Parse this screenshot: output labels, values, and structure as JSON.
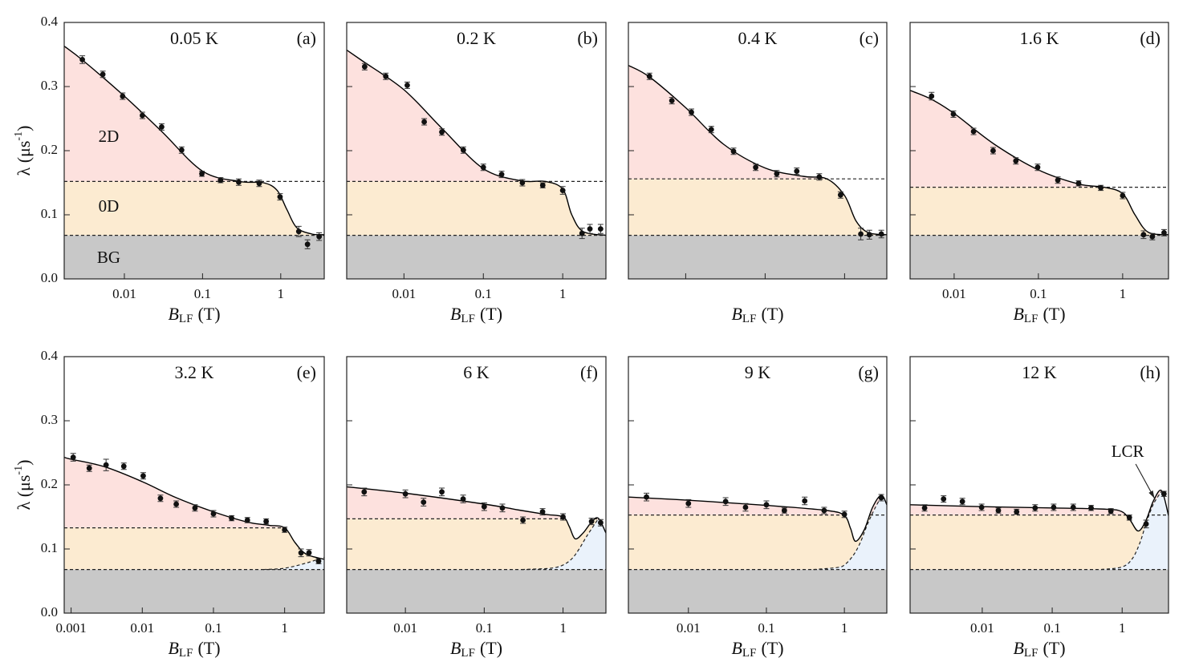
{
  "region_colors": {
    "2D": "#fde1de",
    "0D": "#fcebd1",
    "BG": "#c8c8c8",
    "LCR": "#eaf2fb"
  },
  "chart_data": [
    {
      "type": "scatter",
      "title": "0.05 K",
      "label": "(a)",
      "xlabel": "B",
      "xlabel_sub": "LF",
      "xlabel_unit": "(T)",
      "ylabel": "λ (μs",
      "ylabel_sup": "-1",
      "ylabel_end": ")",
      "log_x": true,
      "xlim": [
        0.0017,
        3.6
      ],
      "ylim": [
        0,
        0.4
      ],
      "xticks": [
        0.01,
        0.1,
        1
      ],
      "xtick_labels": true,
      "yticks": [
        {
          "value": 0,
          "label": "0.0"
        },
        0.1,
        0.2,
        0.3,
        0.4
      ],
      "ytick_labels": true,
      "color": "#111",
      "x": [
        0.0029,
        0.0053,
        0.0095,
        0.017,
        0.03,
        0.054,
        0.098,
        0.17,
        0.29,
        0.53,
        0.98,
        1.7,
        2.2,
        3.1
      ],
      "values": [
        0.342,
        0.319,
        0.285,
        0.255,
        0.237,
        0.201,
        0.164,
        0.154,
        0.151,
        0.149,
        0.128,
        0.074,
        0.054,
        0.066
      ],
      "errors": [
        0.006,
        0.005,
        0.005,
        0.005,
        0.005,
        0.005,
        0.004,
        0.004,
        0.005,
        0.005,
        0.005,
        0.008,
        0.007,
        0.006
      ],
      "fit": {
        "x": [
          0.0017,
          0.003,
          0.01,
          0.03,
          0.1,
          0.3,
          0.6,
          0.9,
          1.2,
          1.6,
          2.5,
          3.6
        ],
        "values": [
          0.363,
          0.34,
          0.285,
          0.23,
          0.168,
          0.152,
          0.15,
          0.138,
          0.108,
          0.08,
          0.07,
          0.069
        ]
      },
      "zero_d": 0.152,
      "bg": 0.068,
      "annotations": [
        {
          "text": "2D",
          "x": 0.0063,
          "y": 0.22
        },
        {
          "text": "0D",
          "x": 0.0063,
          "y": 0.111
        },
        {
          "text": "BG",
          "x": 0.0063,
          "y": 0.031
        }
      ]
    },
    {
      "type": "scatter",
      "title": "0.2 K",
      "label": "(b)",
      "xlabel": "B",
      "xlabel_sub": "LF",
      "xlabel_unit": "(T)",
      "log_x": true,
      "xlim": [
        0.0019,
        3.5
      ],
      "ylim": [
        0,
        0.4
      ],
      "xticks": [
        0.01,
        0.1,
        1
      ],
      "xtick_labels": true,
      "yticks": [
        0,
        0.1,
        0.2,
        0.3,
        0.4
      ],
      "ytick_labels": false,
      "color": "#111",
      "x": [
        0.0032,
        0.0059,
        0.011,
        0.018,
        0.03,
        0.056,
        0.1,
        0.17,
        0.31,
        0.56,
        1.0,
        1.75,
        2.2,
        3.0
      ],
      "values": [
        0.331,
        0.316,
        0.302,
        0.245,
        0.229,
        0.201,
        0.174,
        0.163,
        0.15,
        0.146,
        0.138,
        0.071,
        0.078,
        0.078
      ],
      "errors": [
        0.005,
        0.005,
        0.005,
        0.005,
        0.005,
        0.005,
        0.005,
        0.005,
        0.005,
        0.004,
        0.006,
        0.008,
        0.007,
        0.007
      ],
      "fit": {
        "x": [
          0.0019,
          0.003,
          0.01,
          0.03,
          0.1,
          0.3,
          0.6,
          1,
          1.3,
          1.8,
          3.5
        ],
        "values": [
          0.357,
          0.34,
          0.295,
          0.235,
          0.172,
          0.153,
          0.152,
          0.14,
          0.1,
          0.074,
          0.068
        ]
      },
      "zero_d": 0.152,
      "bg": 0.068
    },
    {
      "type": "scatter",
      "title": "0.4 K",
      "label": "(c)",
      "xlabel": "B",
      "xlabel_sub": "LF",
      "xlabel_unit": "(T)",
      "log_x": true,
      "xlim": [
        0.0019,
        3.4
      ],
      "ylim": [
        0,
        0.4
      ],
      "xticks": [
        0.01,
        0.1,
        1
      ],
      "xtick_labels": false,
      "yticks": [
        0,
        0.1,
        0.2,
        0.3,
        0.4
      ],
      "ytick_labels": false,
      "color": "#111",
      "x": [
        0.0035,
        0.0067,
        0.0118,
        0.021,
        0.04,
        0.076,
        0.14,
        0.25,
        0.48,
        0.89,
        1.6,
        2.05,
        2.9
      ],
      "values": [
        0.316,
        0.278,
        0.26,
        0.233,
        0.199,
        0.174,
        0.164,
        0.168,
        0.159,
        0.131,
        0.07,
        0.069,
        0.07
      ],
      "errors": [
        0.005,
        0.005,
        0.005,
        0.005,
        0.005,
        0.005,
        0.005,
        0.005,
        0.005,
        0.005,
        0.009,
        0.007,
        0.006
      ],
      "fit": {
        "x": [
          0.0019,
          0.0035,
          0.01,
          0.03,
          0.1,
          0.3,
          0.6,
          1,
          1.4,
          2,
          3.4
        ],
        "values": [
          0.333,
          0.315,
          0.267,
          0.21,
          0.173,
          0.16,
          0.156,
          0.13,
          0.09,
          0.072,
          0.069
        ]
      },
      "zero_d": 0.156,
      "bg": 0.068
    },
    {
      "type": "scatter",
      "title": "1.6 K",
      "label": "(d)",
      "xlabel": "B",
      "xlabel_sub": "LF",
      "xlabel_unit": "(T)",
      "log_x": true,
      "xlim": [
        0.003,
        3.5
      ],
      "ylim": [
        0,
        0.4
      ],
      "xticks": [
        0.01,
        0.1,
        1
      ],
      "xtick_labels": true,
      "yticks": [
        0,
        0.1,
        0.2,
        0.3,
        0.4
      ],
      "ytick_labels": false,
      "color": "#111",
      "x": [
        0.0054,
        0.0098,
        0.017,
        0.029,
        0.054,
        0.098,
        0.17,
        0.3,
        0.55,
        1.0,
        1.77,
        2.25,
        3.1
      ],
      "values": [
        0.285,
        0.257,
        0.23,
        0.2,
        0.184,
        0.174,
        0.154,
        0.149,
        0.142,
        0.13,
        0.069,
        0.066,
        0.072
      ],
      "errors": [
        0.006,
        0.005,
        0.005,
        0.005,
        0.005,
        0.005,
        0.005,
        0.004,
        0.004,
        0.005,
        0.006,
        0.005,
        0.005
      ],
      "fit": {
        "x": [
          0.003,
          0.0054,
          0.01,
          0.03,
          0.1,
          0.3,
          0.6,
          1,
          1.4,
          2,
          3.5
        ],
        "values": [
          0.294,
          0.28,
          0.258,
          0.21,
          0.17,
          0.148,
          0.143,
          0.133,
          0.1,
          0.073,
          0.069
        ]
      },
      "zero_d": 0.143,
      "bg": 0.068
    },
    {
      "type": "scatter",
      "title": "3.2 K",
      "label": "(e)",
      "xlabel": "B",
      "xlabel_sub": "LF",
      "xlabel_unit": "(T)",
      "ylabel": "λ (μs",
      "ylabel_sup": "-1",
      "ylabel_end": ")",
      "log_x": true,
      "xlim": [
        0.0008,
        3.6
      ],
      "ylim": [
        0,
        0.4
      ],
      "xticks": [
        0.001,
        0.01,
        0.1,
        1
      ],
      "xtick_labels": true,
      "yticks": [
        {
          "value": 0,
          "label": "0.0"
        },
        0.1,
        0.2,
        0.3,
        0.4
      ],
      "ytick_labels": true,
      "color": "#111",
      "x": [
        0.00107,
        0.0018,
        0.0031,
        0.0055,
        0.0103,
        0.018,
        0.03,
        0.055,
        0.1,
        0.18,
        0.3,
        0.55,
        1.0,
        1.7,
        2.2,
        3.0
      ],
      "values": [
        0.243,
        0.226,
        0.231,
        0.229,
        0.214,
        0.179,
        0.17,
        0.164,
        0.155,
        0.148,
        0.145,
        0.143,
        0.13,
        0.094,
        0.094,
        0.081
      ],
      "errors": [
        0.006,
        0.005,
        0.009,
        0.005,
        0.005,
        0.005,
        0.005,
        0.005,
        0.005,
        0.004,
        0.004,
        0.004,
        0.004,
        0.006,
        0.005,
        0.004
      ],
      "fit": {
        "x": [
          0.0008,
          0.001,
          0.003,
          0.01,
          0.03,
          0.1,
          0.3,
          0.6,
          1,
          1.4,
          2,
          3.6
        ],
        "values": [
          0.243,
          0.24,
          0.228,
          0.205,
          0.18,
          0.158,
          0.142,
          0.137,
          0.133,
          0.11,
          0.092,
          0.084
        ]
      },
      "zero_d": 0.133,
      "bg": 0.068,
      "lcr": {
        "x": [
          0.5,
          1,
          2,
          3.6
        ],
        "values": [
          0.068,
          0.07,
          0.078,
          0.087
        ]
      }
    },
    {
      "type": "scatter",
      "title": "6 K",
      "label": "(f)",
      "xlabel": "B",
      "xlabel_sub": "LF",
      "xlabel_unit": "(T)",
      "log_x": true,
      "xlim": [
        0.0018,
        3.5
      ],
      "ylim": [
        0,
        0.4
      ],
      "xticks": [
        0.01,
        0.1,
        1
      ],
      "xtick_labels": true,
      "yticks": [
        0,
        0.1,
        0.2,
        0.3,
        0.4
      ],
      "ytick_labels": false,
      "color": "#111",
      "x": [
        0.003,
        0.01,
        0.017,
        0.029,
        0.054,
        0.1,
        0.17,
        0.31,
        0.55,
        1.0,
        2.3,
        3.0
      ],
      "values": [
        0.189,
        0.186,
        0.173,
        0.189,
        0.178,
        0.166,
        0.164,
        0.145,
        0.158,
        0.15,
        0.143,
        0.141
      ],
      "errors": [
        0.006,
        0.006,
        0.006,
        0.006,
        0.006,
        0.006,
        0.006,
        0.005,
        0.005,
        0.005,
        0.005,
        0.005
      ],
      "fit": {
        "x": [
          0.0018,
          0.01,
          0.1,
          0.3,
          0.6,
          1,
          1.2,
          1.42,
          1.8,
          2.3,
          2.8,
          3.5
        ],
        "values": [
          0.197,
          0.187,
          0.17,
          0.16,
          0.154,
          0.15,
          0.135,
          0.116,
          0.125,
          0.142,
          0.148,
          0.125
        ]
      },
      "zero_d": 0.147,
      "bg": 0.068,
      "lcr": {
        "x": [
          0.3,
          0.7,
          1,
          1.3,
          1.6,
          2,
          2.5,
          2.8
        ],
        "values": [
          0.068,
          0.07,
          0.075,
          0.085,
          0.1,
          0.12,
          0.138,
          0.147
        ]
      }
    },
    {
      "type": "scatter",
      "title": "9 K",
      "label": "(g)",
      "xlabel": "B",
      "xlabel_sub": "LF",
      "xlabel_unit": "(T)",
      "log_x": true,
      "xlim": [
        0.0017,
        3.5
      ],
      "ylim": [
        0,
        0.4
      ],
      "xticks": [
        0.01,
        0.1,
        1
      ],
      "xtick_labels": true,
      "yticks": [
        0,
        0.1,
        0.2,
        0.3,
        0.4
      ],
      "ytick_labels": false,
      "color": "#111",
      "x": [
        0.0029,
        0.01,
        0.03,
        0.054,
        0.1,
        0.17,
        0.31,
        0.55,
        1.0,
        2.97
      ],
      "values": [
        0.181,
        0.171,
        0.174,
        0.165,
        0.169,
        0.16,
        0.175,
        0.16,
        0.154,
        0.18
      ],
      "errors": [
        0.006,
        0.006,
        0.006,
        0.006,
        0.006,
        0.004,
        0.006,
        0.005,
        0.005,
        0.005
      ],
      "fit": {
        "x": [
          0.0017,
          0.01,
          0.1,
          0.6,
          1,
          1.2,
          1.39,
          1.8,
          2.3,
          2.97,
          3.5
        ],
        "values": [
          0.181,
          0.176,
          0.168,
          0.16,
          0.152,
          0.132,
          0.112,
          0.13,
          0.165,
          0.184,
          0.169
        ]
      },
      "zero_d": 0.153,
      "bg": 0.068,
      "lcr": {
        "x": [
          0.4,
          0.8,
          1,
          1.3,
          1.6,
          2,
          2.5,
          3
        ],
        "values": [
          0.068,
          0.071,
          0.075,
          0.09,
          0.11,
          0.14,
          0.165,
          0.182
        ]
      }
    },
    {
      "type": "scatter",
      "title": "12 K",
      "label": "(h)",
      "xlabel": "B",
      "xlabel_sub": "LF",
      "xlabel_unit": "(T)",
      "log_x": true,
      "xlim": [
        0.00093,
        4.6
      ],
      "ylim": [
        0,
        0.4
      ],
      "xticks": [
        0.01,
        0.1,
        1
      ],
      "xtick_labels": true,
      "yticks": [
        0,
        0.1,
        0.2,
        0.3,
        0.4
      ],
      "ytick_labels": false,
      "color": "#111",
      "x": [
        0.0015,
        0.0028,
        0.0052,
        0.0098,
        0.017,
        0.031,
        0.057,
        0.105,
        0.2,
        0.36,
        0.69,
        1.27,
        2.2,
        3.96
      ],
      "values": [
        0.164,
        0.178,
        0.174,
        0.165,
        0.16,
        0.158,
        0.164,
        0.165,
        0.165,
        0.164,
        0.159,
        0.149,
        0.139,
        0.186
      ],
      "errors": [
        0.005,
        0.005,
        0.005,
        0.005,
        0.004,
        0.004,
        0.005,
        0.005,
        0.005,
        0.004,
        0.004,
        0.004,
        0.006,
        0.004
      ],
      "fit": {
        "x": [
          0.00093,
          0.01,
          0.1,
          0.6,
          1,
          1.3,
          1.7,
          2.2,
          2.8,
          3.66,
          4.6
        ],
        "values": [
          0.169,
          0.166,
          0.164,
          0.162,
          0.158,
          0.145,
          0.128,
          0.145,
          0.175,
          0.191,
          0.152
        ]
      },
      "zero_d": 0.153,
      "bg": 0.068,
      "lcr": {
        "x": [
          0.5,
          1,
          1.4,
          1.8,
          2.2,
          2.8,
          3.66
        ],
        "values": [
          0.068,
          0.072,
          0.085,
          0.11,
          0.14,
          0.17,
          0.19
        ]
      },
      "annotations": [
        {
          "text": "LCR",
          "x": 1.2,
          "y": 0.25,
          "arrow_x": 2.9,
          "arrow_y": 0.179
        }
      ]
    }
  ]
}
